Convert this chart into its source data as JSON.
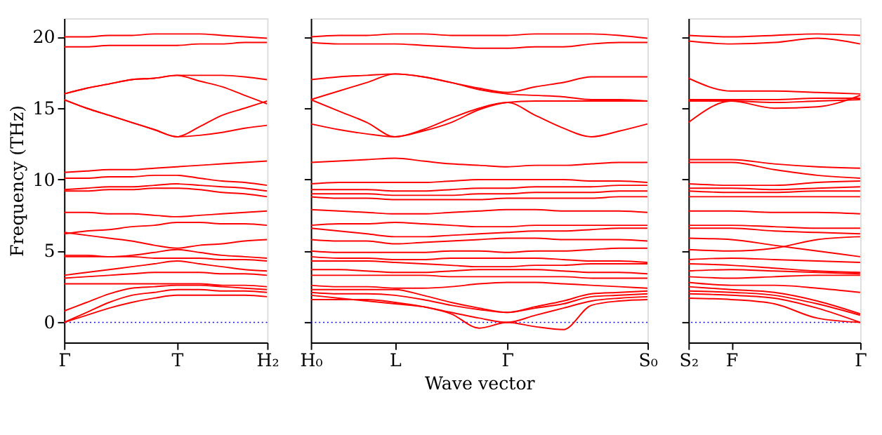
{
  "chart_data": [
    {
      "type": "line",
      "ylabel": "Frequency (THz)",
      "categories": [
        "Γ",
        null,
        null,
        null,
        null,
        "T",
        null,
        null,
        null,
        "H₂"
      ],
      "ylim": [
        -1.4,
        21.3
      ],
      "yticks": [
        0,
        5,
        10,
        15,
        20
      ],
      "ref_lines": [
        {
          "axis": "y",
          "value": 0,
          "color": "#0000ff",
          "line_style": "dotted"
        }
      ],
      "series": [
        {
          "color": "#ff0000",
          "values": [
            20.0,
            20.0,
            20.1,
            20.1,
            20.2,
            20.2,
            20.2,
            20.1,
            20.0,
            19.9
          ]
        },
        {
          "color": "#ff0000",
          "values": [
            19.3,
            19.3,
            19.4,
            19.4,
            19.4,
            19.4,
            19.5,
            19.5,
            19.6,
            19.6
          ]
        },
        {
          "color": "#ff0000",
          "values": [
            16.0,
            16.4,
            16.7,
            17.0,
            17.1,
            17.3,
            17.3,
            17.3,
            17.2,
            17.0
          ]
        },
        {
          "color": "#ff0000",
          "values": [
            16.0,
            16.4,
            16.7,
            17.0,
            17.1,
            17.3,
            16.9,
            16.5,
            15.9,
            15.3
          ]
        },
        {
          "color": "#ff0000",
          "values": [
            15.6,
            15.0,
            14.5,
            14.0,
            13.5,
            13.0,
            13.7,
            14.5,
            15.0,
            15.5
          ]
        },
        {
          "color": "#ff0000",
          "values": [
            15.6,
            15.0,
            14.5,
            14.0,
            13.5,
            13.0,
            13.1,
            13.3,
            13.6,
            13.8
          ]
        },
        {
          "color": "#ff0000",
          "values": [
            10.5,
            10.6,
            10.7,
            10.7,
            10.8,
            10.9,
            11.0,
            11.1,
            11.2,
            11.3
          ]
        },
        {
          "color": "#ff0000",
          "values": [
            10.1,
            10.1,
            10.2,
            10.2,
            10.3,
            10.3,
            10.1,
            9.9,
            9.8,
            9.6
          ]
        },
        {
          "color": "#ff0000",
          "values": [
            9.3,
            9.4,
            9.5,
            9.5,
            9.6,
            9.7,
            9.6,
            9.5,
            9.4,
            9.2
          ]
        },
        {
          "color": "#ff0000",
          "values": [
            9.2,
            9.2,
            9.3,
            9.3,
            9.4,
            9.4,
            9.3,
            9.1,
            9.0,
            8.8
          ]
        },
        {
          "color": "#ff0000",
          "values": [
            7.7,
            7.7,
            7.6,
            7.6,
            7.5,
            7.4,
            7.5,
            7.6,
            7.7,
            7.8
          ]
        },
        {
          "color": "#ff0000",
          "values": [
            6.2,
            6.4,
            6.5,
            6.7,
            6.8,
            7.0,
            7.0,
            6.9,
            6.9,
            6.8
          ]
        },
        {
          "color": "#ff0000",
          "values": [
            6.3,
            6.1,
            5.9,
            5.7,
            5.4,
            5.2,
            5.4,
            5.5,
            5.7,
            5.8
          ]
        },
        {
          "color": "#ff0000",
          "values": [
            4.6,
            4.6,
            4.6,
            4.7,
            4.9,
            5.1,
            4.9,
            4.7,
            4.6,
            4.5
          ]
        },
        {
          "color": "#ff0000",
          "values": [
            4.7,
            4.7,
            4.6,
            4.6,
            4.5,
            4.5,
            4.5,
            4.4,
            4.4,
            4.3
          ]
        },
        {
          "color": "#ff0000",
          "values": [
            3.3,
            3.5,
            3.7,
            3.9,
            4.1,
            4.3,
            4.1,
            3.9,
            3.7,
            3.6
          ]
        },
        {
          "color": "#ff0000",
          "values": [
            3.1,
            3.2,
            3.3,
            3.4,
            3.5,
            3.5,
            3.5,
            3.4,
            3.4,
            3.3
          ]
        },
        {
          "color": "#ff0000",
          "values": [
            2.7,
            2.7,
            2.7,
            2.7,
            2.7,
            2.7,
            2.7,
            2.6,
            2.6,
            2.5
          ]
        },
        {
          "color": "#ff0000",
          "values": [
            0.8,
            1.4,
            2.0,
            2.4,
            2.5,
            2.6,
            2.6,
            2.5,
            2.4,
            2.3
          ]
        },
        {
          "color": "#ff0000",
          "values": [
            0.0,
            0.7,
            1.4,
            1.9,
            2.1,
            2.3,
            2.3,
            2.2,
            2.2,
            2.1
          ]
        },
        {
          "color": "#ff0000",
          "values": [
            0.0,
            0.5,
            1.0,
            1.4,
            1.7,
            1.9,
            1.9,
            1.9,
            1.9,
            1.8
          ]
        }
      ]
    },
    {
      "type": "line",
      "xlabel": "Wave vector",
      "tick_labels": "x",
      "categories": [
        "H₀",
        null,
        null,
        "L",
        null,
        null,
        null,
        "Γ",
        null,
        null,
        null,
        null,
        "S₀"
      ],
      "ylim": [
        -1.4,
        21.3
      ],
      "yticks": [
        0,
        5,
        10,
        15,
        20
      ],
      "ref_lines": [
        {
          "axis": "y",
          "value": 0,
          "color": "#0000ff",
          "line_style": "dotted"
        }
      ],
      "series": [
        {
          "color": "#ff0000",
          "values": [
            20.0,
            20.1,
            20.1,
            20.2,
            20.2,
            20.1,
            20.1,
            20.1,
            20.2,
            20.2,
            20.2,
            20.1,
            19.9
          ]
        },
        {
          "color": "#ff0000",
          "values": [
            19.6,
            19.5,
            19.5,
            19.5,
            19.4,
            19.3,
            19.2,
            19.2,
            19.3,
            19.3,
            19.5,
            19.6,
            19.6
          ]
        },
        {
          "color": "#ff0000",
          "values": [
            17.0,
            17.2,
            17.3,
            17.4,
            17.2,
            16.8,
            16.4,
            16.1,
            16.5,
            16.8,
            17.2,
            17.2,
            17.2
          ]
        },
        {
          "color": "#ff0000",
          "values": [
            15.6,
            16.2,
            16.8,
            17.4,
            17.2,
            16.8,
            16.3,
            16.0,
            15.9,
            15.8,
            15.6,
            15.6,
            15.5
          ]
        },
        {
          "color": "#ff0000",
          "values": [
            15.6,
            14.8,
            14.0,
            13.0,
            13.5,
            14.3,
            15.0,
            15.4,
            14.5,
            13.6,
            13.0,
            13.4,
            13.9
          ]
        },
        {
          "color": "#ff0000",
          "values": [
            13.9,
            13.5,
            13.2,
            13.0,
            13.4,
            14.0,
            14.9,
            15.4,
            15.5,
            15.5,
            15.5,
            15.5,
            15.5
          ]
        },
        {
          "color": "#ff0000",
          "values": [
            11.2,
            11.3,
            11.4,
            11.5,
            11.3,
            11.1,
            11.0,
            10.9,
            11.0,
            11.0,
            11.1,
            11.2,
            11.2
          ]
        },
        {
          "color": "#ff0000",
          "values": [
            9.7,
            9.8,
            9.8,
            9.8,
            9.8,
            9.9,
            10.0,
            10.0,
            10.0,
            10.0,
            9.9,
            9.9,
            9.8
          ]
        },
        {
          "color": "#ff0000",
          "values": [
            9.3,
            9.3,
            9.3,
            9.2,
            9.2,
            9.3,
            9.4,
            9.4,
            9.5,
            9.5,
            9.5,
            9.6,
            9.6
          ]
        },
        {
          "color": "#ff0000",
          "values": [
            9.0,
            9.0,
            9.0,
            8.9,
            8.9,
            8.9,
            9.0,
            9.0,
            9.1,
            9.1,
            9.1,
            9.2,
            9.2
          ]
        },
        {
          "color": "#ff0000",
          "values": [
            8.8,
            8.7,
            8.7,
            8.6,
            8.6,
            8.6,
            8.6,
            8.7,
            8.7,
            8.7,
            8.7,
            8.8,
            8.8
          ]
        },
        {
          "color": "#ff0000",
          "values": [
            7.9,
            7.8,
            7.7,
            7.6,
            7.6,
            7.7,
            7.8,
            7.9,
            7.9,
            7.8,
            7.8,
            7.8,
            7.7
          ]
        },
        {
          "color": "#ff0000",
          "values": [
            6.8,
            6.9,
            6.9,
            7.0,
            6.9,
            6.8,
            6.7,
            6.7,
            6.8,
            6.8,
            6.8,
            6.8,
            6.8
          ]
        },
        {
          "color": "#ff0000",
          "values": [
            6.6,
            6.4,
            6.2,
            6.0,
            6.0,
            6.1,
            6.2,
            6.3,
            6.4,
            6.4,
            6.5,
            6.6,
            6.6
          ]
        },
        {
          "color": "#ff0000",
          "values": [
            5.8,
            5.7,
            5.7,
            5.5,
            5.6,
            5.7,
            5.8,
            5.9,
            5.9,
            5.8,
            5.8,
            5.8,
            5.7
          ]
        },
        {
          "color": "#ff0000",
          "values": [
            5.0,
            4.9,
            4.9,
            4.9,
            4.9,
            5.0,
            5.0,
            4.9,
            5.0,
            5.0,
            5.1,
            5.2,
            5.2
          ]
        },
        {
          "color": "#ff0000",
          "values": [
            4.6,
            4.5,
            4.5,
            4.4,
            4.4,
            4.5,
            4.5,
            4.5,
            4.5,
            4.4,
            4.3,
            4.3,
            4.2
          ]
        },
        {
          "color": "#ff0000",
          "values": [
            4.3,
            4.3,
            4.3,
            4.2,
            4.1,
            4.0,
            3.9,
            3.9,
            4.0,
            4.0,
            4.1,
            4.1,
            4.1
          ]
        },
        {
          "color": "#ff0000",
          "values": [
            3.7,
            3.7,
            3.6,
            3.5,
            3.5,
            3.6,
            3.7,
            3.7,
            3.7,
            3.6,
            3.5,
            3.5,
            3.4
          ]
        },
        {
          "color": "#ff0000",
          "values": [
            3.3,
            3.3,
            3.3,
            3.3,
            3.3,
            3.2,
            3.2,
            3.2,
            3.2,
            3.2,
            3.1,
            3.1,
            3.1
          ]
        },
        {
          "color": "#ff0000",
          "values": [
            2.6,
            2.5,
            2.5,
            2.4,
            2.4,
            2.5,
            2.7,
            2.8,
            2.8,
            2.7,
            2.6,
            2.5,
            2.4
          ]
        },
        {
          "color": "#ff0000",
          "values": [
            2.3,
            2.3,
            2.3,
            2.3,
            1.9,
            1.4,
            1.0,
            0.7,
            1.1,
            1.5,
            2.0,
            2.1,
            2.2
          ]
        },
        {
          "color": "#ff0000",
          "values": [
            2.1,
            2.0,
            2.0,
            1.9,
            1.6,
            1.2,
            0.9,
            0.7,
            1.0,
            1.3,
            1.8,
            1.9,
            2.0
          ]
        },
        {
          "color": "#ff0000",
          "values": [
            1.9,
            1.7,
            1.5,
            1.3,
            1.1,
            0.7,
            0.3,
            0.0,
            0.5,
            1.0,
            1.5,
            1.7,
            1.8
          ]
        },
        {
          "color": "#ff0000",
          "values": [
            1.6,
            1.6,
            1.6,
            1.4,
            1.1,
            0.6,
            -0.4,
            0.0,
            -0.3,
            -0.5,
            1.2,
            1.5,
            1.6
          ]
        }
      ]
    },
    {
      "type": "line",
      "tick_labels": "x",
      "categories": [
        "S₂",
        "F",
        null,
        null,
        "Γ"
      ],
      "ylim": [
        -1.4,
        21.3
      ],
      "yticks": [
        0,
        5,
        10,
        15,
        20
      ],
      "ref_lines": [
        {
          "axis": "y",
          "value": 0,
          "color": "#0000ff",
          "line_style": "dotted"
        }
      ],
      "series": [
        {
          "color": "#ff0000",
          "values": [
            20.1,
            20.0,
            20.1,
            20.2,
            20.1
          ]
        },
        {
          "color": "#ff0000",
          "values": [
            19.7,
            19.5,
            19.6,
            19.9,
            19.5
          ]
        },
        {
          "color": "#ff0000",
          "values": [
            17.1,
            16.2,
            16.2,
            16.1,
            16.0
          ]
        },
        {
          "color": "#ff0000",
          "values": [
            15.6,
            15.6,
            15.6,
            15.7,
            15.7
          ]
        },
        {
          "color": "#ff0000",
          "values": [
            15.5,
            15.5,
            15.0,
            15.1,
            15.9
          ]
        },
        {
          "color": "#ff0000",
          "values": [
            14.0,
            15.5,
            15.4,
            15.5,
            15.6
          ]
        },
        {
          "color": "#ff0000",
          "values": [
            11.4,
            11.4,
            11.1,
            10.9,
            10.8
          ]
        },
        {
          "color": "#ff0000",
          "values": [
            11.2,
            11.2,
            10.7,
            10.3,
            10.1
          ]
        },
        {
          "color": "#ff0000",
          "values": [
            9.7,
            9.6,
            9.6,
            9.8,
            9.9
          ]
        },
        {
          "color": "#ff0000",
          "values": [
            9.4,
            9.4,
            9.3,
            9.4,
            9.5
          ]
        },
        {
          "color": "#ff0000",
          "values": [
            9.2,
            9.1,
            9.1,
            9.2,
            9.2
          ]
        },
        {
          "color": "#ff0000",
          "values": [
            8.8,
            8.8,
            8.8,
            8.8,
            8.8
          ]
        },
        {
          "color": "#ff0000",
          "values": [
            7.8,
            7.8,
            7.7,
            7.7,
            7.6
          ]
        },
        {
          "color": "#ff0000",
          "values": [
            6.8,
            6.8,
            6.7,
            6.6,
            6.6
          ]
        },
        {
          "color": "#ff0000",
          "values": [
            6.6,
            6.6,
            6.4,
            6.3,
            6.2
          ]
        },
        {
          "color": "#ff0000",
          "values": [
            5.9,
            5.8,
            5.4,
            5.0,
            4.6
          ]
        },
        {
          "color": "#ff0000",
          "values": [
            5.1,
            5.0,
            5.2,
            5.8,
            6.0
          ]
        },
        {
          "color": "#ff0000",
          "values": [
            4.4,
            4.5,
            4.4,
            4.3,
            4.2
          ]
        },
        {
          "color": "#ff0000",
          "values": [
            4.1,
            4.0,
            3.8,
            3.6,
            3.5
          ]
        },
        {
          "color": "#ff0000",
          "values": [
            3.6,
            3.7,
            3.6,
            3.5,
            3.4
          ]
        },
        {
          "color": "#ff0000",
          "values": [
            3.2,
            3.1,
            3.2,
            3.3,
            3.3
          ]
        },
        {
          "color": "#ff0000",
          "values": [
            2.8,
            2.6,
            2.6,
            2.4,
            2.1
          ]
        },
        {
          "color": "#ff0000",
          "values": [
            2.5,
            2.3,
            2.1,
            1.5,
            0.6
          ]
        },
        {
          "color": "#ff0000",
          "values": [
            2.2,
            2.1,
            1.9,
            1.3,
            0.5
          ]
        },
        {
          "color": "#ff0000",
          "values": [
            2.0,
            1.9,
            1.7,
            1.0,
            0.0
          ]
        },
        {
          "color": "#ff0000",
          "values": [
            1.7,
            1.6,
            1.3,
            0.3,
            0.0
          ]
        }
      ]
    }
  ]
}
